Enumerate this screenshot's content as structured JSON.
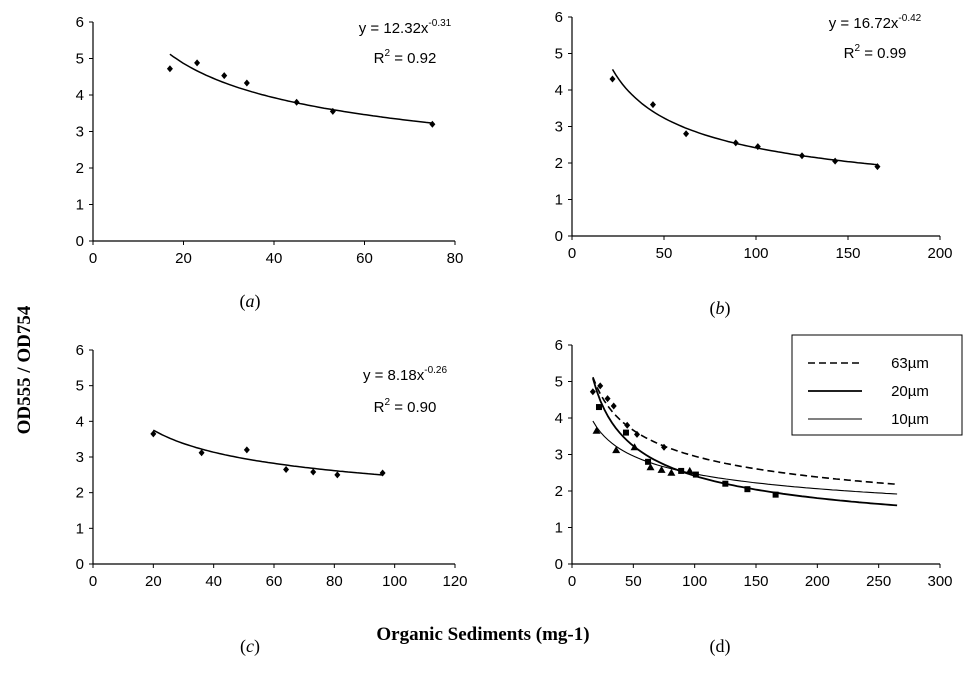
{
  "figure": {
    "ylabel": "OD555 / OD754",
    "xlabel": "Organic Sediments (mg-1)"
  },
  "chart_data": [
    {
      "id": "a",
      "type": "scatter",
      "caption": "a",
      "equation": {
        "coef": "12.32",
        "exp": "-0.31",
        "r2": "0.92"
      },
      "fit": {
        "a": 12.32,
        "b": -0.31,
        "from": 17,
        "to": 75
      },
      "x": [
        17,
        23,
        29,
        34,
        45,
        53,
        75
      ],
      "y": [
        4.72,
        4.88,
        4.53,
        4.33,
        3.8,
        3.55,
        3.2
      ],
      "xlim": [
        0,
        80
      ],
      "ylim": [
        0,
        6
      ],
      "xticks": [
        0,
        20,
        40,
        60,
        80
      ],
      "yticks": [
        0,
        1,
        2,
        3,
        4,
        5,
        6
      ]
    },
    {
      "id": "b",
      "type": "scatter",
      "caption": "b",
      "equation": {
        "coef": "16.72",
        "exp": "-0.42",
        "r2": "0.99"
      },
      "fit": {
        "a": 16.72,
        "b": -0.42,
        "from": 22,
        "to": 166
      },
      "x": [
        22,
        44,
        62,
        89,
        101,
        125,
        143,
        166
      ],
      "y": [
        4.3,
        3.6,
        2.8,
        2.55,
        2.45,
        2.2,
        2.05,
        1.9
      ],
      "xlim": [
        0,
        200
      ],
      "ylim": [
        0,
        6
      ],
      "xticks": [
        0,
        50,
        100,
        150,
        200
      ],
      "yticks": [
        0,
        1,
        2,
        3,
        4,
        5,
        6
      ]
    },
    {
      "id": "c",
      "type": "scatter",
      "caption": "c",
      "equation": {
        "coef": "8.18",
        "exp": "-0.26",
        "r2": "0.90"
      },
      "fit": {
        "a": 8.18,
        "b": -0.26,
        "from": 20,
        "to": 96
      },
      "x": [
        20,
        36,
        51,
        64,
        73,
        81,
        96
      ],
      "y": [
        3.65,
        3.12,
        3.2,
        2.65,
        2.58,
        2.5,
        2.55
      ],
      "xlim": [
        0,
        120
      ],
      "ylim": [
        0,
        6
      ],
      "xticks": [
        0,
        20,
        40,
        60,
        80,
        100,
        120
      ],
      "yticks": [
        0,
        1,
        2,
        3,
        4,
        5,
        6
      ]
    },
    {
      "id": "d",
      "type": "line",
      "caption": "d",
      "xlim": [
        0,
        300
      ],
      "ylim": [
        0,
        6
      ],
      "xticks": [
        0,
        50,
        100,
        150,
        200,
        250,
        300
      ],
      "yticks": [
        0,
        1,
        2,
        3,
        4,
        5,
        6
      ],
      "legend_position": "top-right",
      "series": [
        {
          "name": "63µm",
          "style": "dashed",
          "marker": "diamond",
          "fit": {
            "a": 12.32,
            "b": -0.31,
            "from": 17,
            "to": 265
          },
          "x": [
            17,
            23,
            29,
            34,
            45,
            53,
            75
          ],
          "y": [
            4.72,
            4.88,
            4.53,
            4.33,
            3.8,
            3.55,
            3.2
          ]
        },
        {
          "name": "20µm",
          "style": "thick",
          "marker": "square",
          "fit": {
            "a": 16.72,
            "b": -0.42,
            "from": 17,
            "to": 265
          },
          "x": [
            22,
            44,
            62,
            89,
            101,
            125,
            143,
            166
          ],
          "y": [
            4.3,
            3.6,
            2.8,
            2.55,
            2.45,
            2.2,
            2.05,
            1.9
          ]
        },
        {
          "name": "10µm",
          "style": "thin",
          "marker": "triangle",
          "fit": {
            "a": 8.18,
            "b": -0.26,
            "from": 17,
            "to": 265
          },
          "x": [
            20,
            36,
            51,
            64,
            73,
            81,
            96
          ],
          "y": [
            3.65,
            3.12,
            3.2,
            2.65,
            2.58,
            2.5,
            2.55
          ]
        }
      ]
    }
  ]
}
